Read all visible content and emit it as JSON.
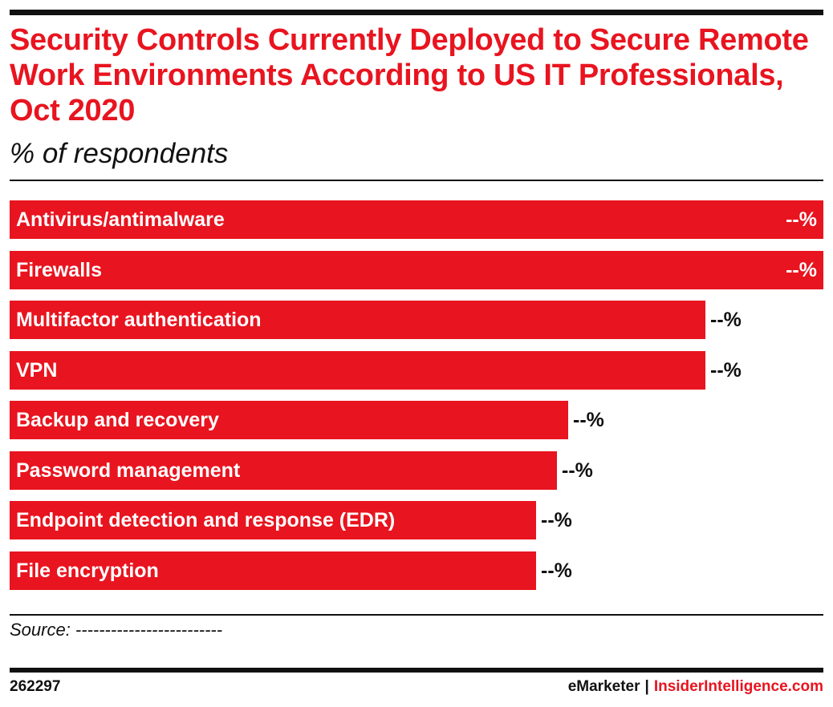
{
  "header": {
    "title": "Security Controls Currently Deployed to Secure Remote Work Environments According to US IT Professionals, Oct 2020",
    "subtitle": "% of respondents"
  },
  "chart_data": {
    "type": "bar",
    "orientation": "horizontal",
    "title": "Security Controls Currently Deployed to Secure Remote Work Environments According to US IT Professionals, Oct 2020",
    "subtitle": "% of respondents",
    "categories": [
      "Antivirus/antimalware",
      "Firewalls",
      "Multifactor authentication",
      "VPN",
      "Backup and recovery",
      "Password management",
      "Endpoint detection and response (EDR)",
      "File encryption"
    ],
    "values": [
      100,
      100,
      85.5,
      85.5,
      68.6,
      67.3,
      64.7,
      64.7
    ],
    "value_labels": [
      "--%",
      "--%",
      "--%",
      "--%",
      "--%",
      "--%",
      "--%",
      "--%"
    ],
    "value_note": "relative bar lengths (longest = 100); printed values are masked as --%",
    "grid": false,
    "legend": "none",
    "bar_color": "#e8141f"
  },
  "footer": {
    "source": "Source: -------------------------",
    "chart_id": "262297",
    "brand_primary": "eMarketer",
    "brand_separator": "|",
    "brand_secondary": "InsiderIntelligence.com"
  },
  "colors": {
    "accent": "#e8141f",
    "text": "#111111"
  }
}
